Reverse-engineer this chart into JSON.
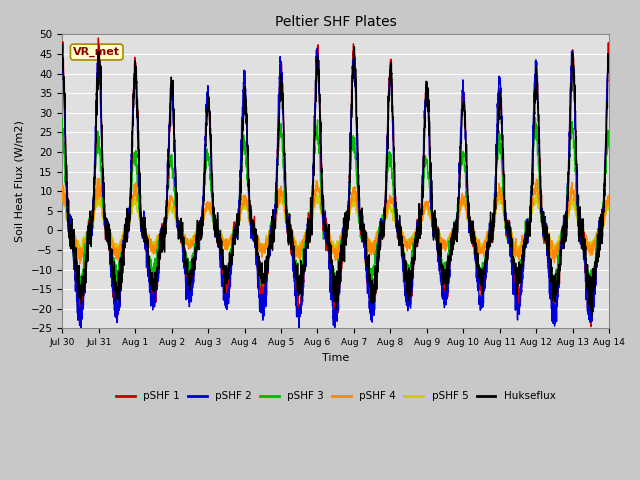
{
  "title": "Peltier SHF Plates",
  "ylabel": "Soil Heat Flux (W/m2)",
  "xlabel": "Time",
  "ylim": [
    -25,
    50
  ],
  "xlim": [
    0,
    15
  ],
  "xtick_labels": [
    "Jul 30",
    "Jul 31",
    "Aug 1",
    "Aug 2",
    "Aug 3",
    "Aug 4",
    "Aug 5",
    "Aug 6",
    "Aug 7",
    "Aug 8",
    "Aug 9",
    "Aug 10",
    "Aug 11",
    "Aug 12",
    "Aug 13",
    "Aug 14"
  ],
  "legend_labels": [
    "pSHF 1",
    "pSHF 2",
    "pSHF 3",
    "pSHF 4",
    "pSHF 5",
    "Hukseflux"
  ],
  "series_colors": [
    "#cc0000",
    "#0000dd",
    "#00bb00",
    "#ff8800",
    "#cccc00",
    "#000000"
  ],
  "annotation_text": "VR_met",
  "fig_bg": "#c8c8c8",
  "plot_bg": "#e0e0e0",
  "grid_color": "#ffffff"
}
